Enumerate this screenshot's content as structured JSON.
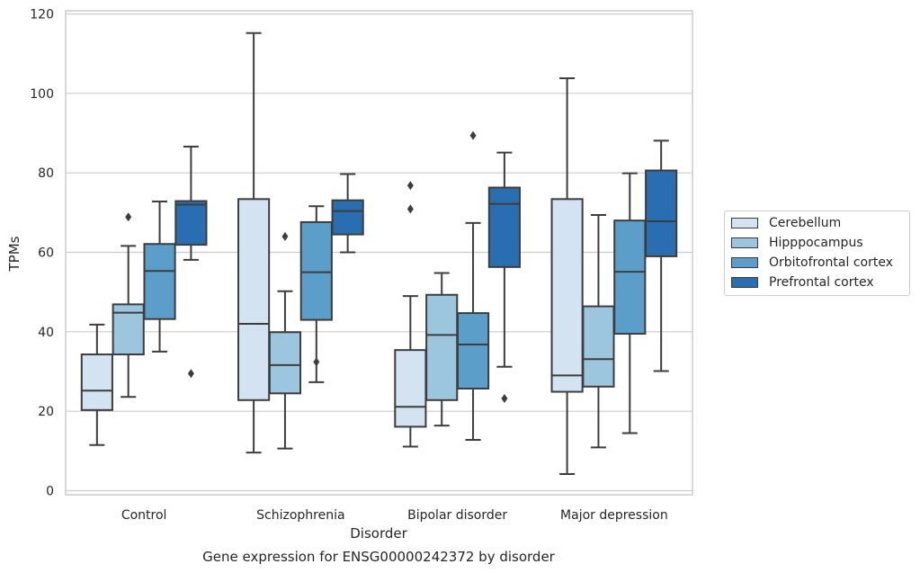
{
  "chart_data": {
    "type": "box",
    "title": "Gene expression for ENSG00000242372 by disorder",
    "xlabel": "Disorder",
    "ylabel": "TPMs",
    "ylim": [
      -1,
      121
    ],
    "yticks": [
      0,
      20,
      40,
      60,
      80,
      100,
      120
    ],
    "grid": "horizontal",
    "legend_position": "right",
    "categories": [
      "Control",
      "Schizophrenia",
      "Bipolar disorder",
      "Major depression"
    ],
    "series": [
      {
        "name": "Cerebellum",
        "color": "#d3e3f2",
        "boxes": [
          {
            "whislo": 11.5,
            "q1": 20.3,
            "med": 25.2,
            "q3": 34.3,
            "whishi": 41.8,
            "fliers": []
          },
          {
            "whislo": 9.6,
            "q1": 22.8,
            "med": 42.0,
            "q3": 73.4,
            "whishi": 115.2,
            "fliers": []
          },
          {
            "whislo": 11.1,
            "q1": 16.1,
            "med": 21.1,
            "q3": 35.4,
            "whishi": 49.0,
            "fliers": [
              70.9,
              76.8
            ]
          },
          {
            "whislo": 4.2,
            "q1": 24.9,
            "med": 29.0,
            "q3": 73.4,
            "whishi": 103.8,
            "fliers": []
          }
        ]
      },
      {
        "name": "Hipppocampus",
        "color": "#9cc5de",
        "boxes": [
          {
            "whislo": 23.6,
            "q1": 34.3,
            "med": 44.8,
            "q3": 46.9,
            "whishi": 61.6,
            "fliers": [
              68.9
            ]
          },
          {
            "whislo": 10.6,
            "q1": 24.5,
            "med": 31.6,
            "q3": 39.9,
            "whishi": 50.2,
            "fliers": [
              64.0
            ]
          },
          {
            "whislo": 16.4,
            "q1": 22.8,
            "med": 39.2,
            "q3": 49.3,
            "whishi": 54.8,
            "fliers": []
          },
          {
            "whislo": 10.9,
            "q1": 26.2,
            "med": 33.1,
            "q3": 46.4,
            "whishi": 69.4,
            "fliers": []
          }
        ]
      },
      {
        "name": "Orbitofrontal cortex",
        "color": "#5b9ec9",
        "boxes": [
          {
            "whislo": 35.0,
            "q1": 43.2,
            "med": 55.3,
            "q3": 62.1,
            "whishi": 72.8,
            "fliers": []
          },
          {
            "whislo": 27.3,
            "q1": 43.0,
            "med": 55.0,
            "q3": 67.6,
            "whishi": 71.6,
            "fliers": [
              32.4
            ]
          },
          {
            "whislo": 12.8,
            "q1": 25.7,
            "med": 36.8,
            "q3": 44.7,
            "whishi": 67.4,
            "fliers": [
              89.4
            ]
          },
          {
            "whislo": 14.5,
            "q1": 39.5,
            "med": 55.1,
            "q3": 68.0,
            "whishi": 79.9,
            "fliers": []
          }
        ]
      },
      {
        "name": "Prefrontal cortex",
        "color": "#2a6eb2",
        "boxes": [
          {
            "whislo": 58.1,
            "q1": 61.9,
            "med": 72.0,
            "q3": 72.9,
            "whishi": 86.6,
            "fliers": [
              29.5
            ]
          },
          {
            "whislo": 60.0,
            "q1": 64.5,
            "med": 70.4,
            "q3": 73.1,
            "whishi": 79.7,
            "fliers": []
          },
          {
            "whislo": 31.2,
            "q1": 56.3,
            "med": 72.2,
            "q3": 76.3,
            "whishi": 85.1,
            "fliers": [
              23.2
            ]
          },
          {
            "whislo": 30.1,
            "q1": 59.0,
            "med": 67.8,
            "q3": 80.6,
            "whishi": 88.1,
            "fliers": []
          }
        ]
      }
    ]
  }
}
